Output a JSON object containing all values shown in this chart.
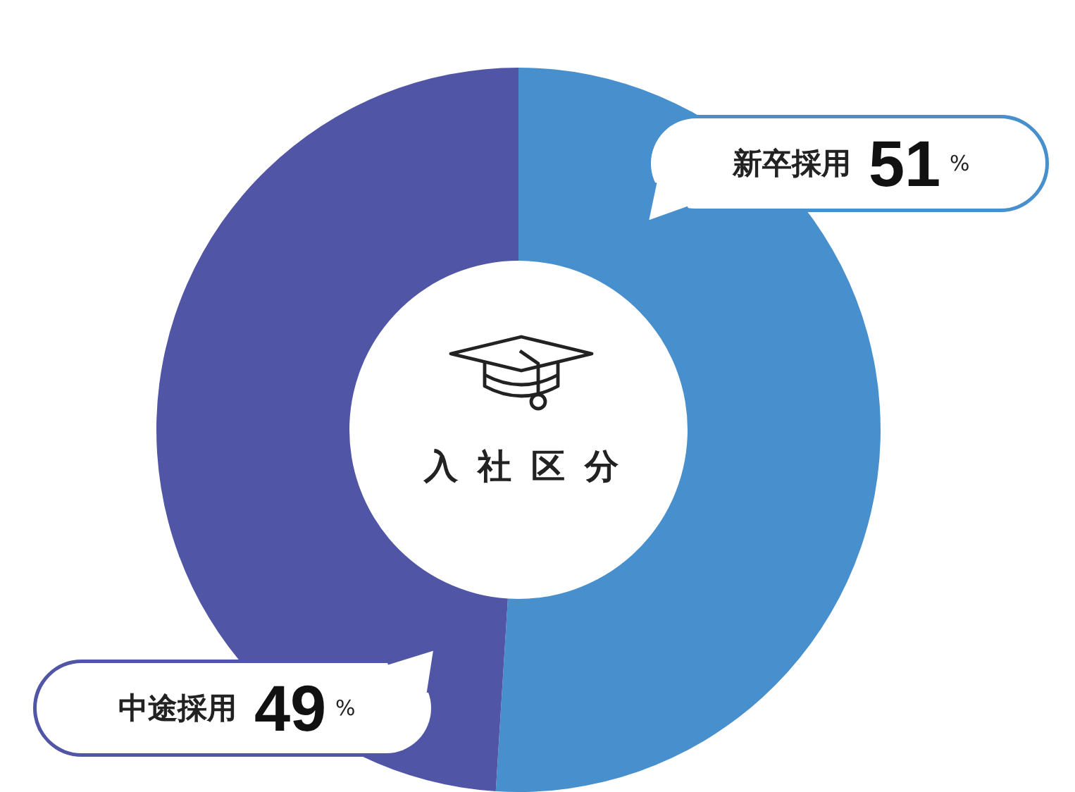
{
  "chart_data": {
    "type": "donut",
    "title": "入社区分",
    "categories": [
      "新卒採用",
      "中途採用"
    ],
    "values": [
      51,
      49
    ],
    "colors": [
      "#4890cd",
      "#5055a6"
    ],
    "value_labels": [
      "51%",
      "49%"
    ]
  }
}
